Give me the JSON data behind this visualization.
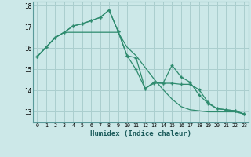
{
  "x": [
    0,
    1,
    2,
    3,
    4,
    5,
    6,
    7,
    8,
    9,
    10,
    11,
    12,
    13,
    14,
    15,
    16,
    17,
    18,
    19,
    20,
    21,
    22,
    23
  ],
  "line1": [
    15.6,
    16.05,
    16.5,
    16.75,
    17.05,
    17.15,
    17.3,
    17.45,
    17.8,
    16.8,
    15.65,
    15.55,
    14.1,
    14.4,
    14.35,
    15.2,
    14.65,
    14.4,
    13.8,
    13.4,
    13.15,
    13.1,
    13.05,
    12.9
  ],
  "line2": [
    15.6,
    16.05,
    16.5,
    16.75,
    17.05,
    17.15,
    17.3,
    17.45,
    17.8,
    16.8,
    15.65,
    15.0,
    14.1,
    14.35,
    14.35,
    14.35,
    14.3,
    14.3,
    14.05,
    13.45,
    13.15,
    13.1,
    13.05,
    12.9
  ],
  "line3": [
    15.6,
    16.05,
    16.5,
    16.75,
    16.75,
    16.75,
    16.75,
    16.75,
    16.75,
    16.75,
    16.05,
    15.65,
    15.1,
    14.55,
    14.05,
    13.6,
    13.25,
    13.1,
    13.05,
    13.0,
    13.0,
    13.0,
    13.0,
    12.9
  ],
  "color": "#2e8b6e",
  "bg_color": "#cce8e8",
  "xlabel": "Humidex (Indice chaleur)",
  "ylim": [
    12.5,
    18.2
  ],
  "xlim": [
    -0.5,
    23.5
  ],
  "yticks": [
    13,
    14,
    15,
    16,
    17,
    18
  ],
  "xticks": [
    0,
    1,
    2,
    3,
    4,
    5,
    6,
    7,
    8,
    9,
    10,
    11,
    12,
    13,
    14,
    15,
    16,
    17,
    18,
    19,
    20,
    21,
    22,
    23
  ],
  "grid_color": "#aacece",
  "marker": "+"
}
